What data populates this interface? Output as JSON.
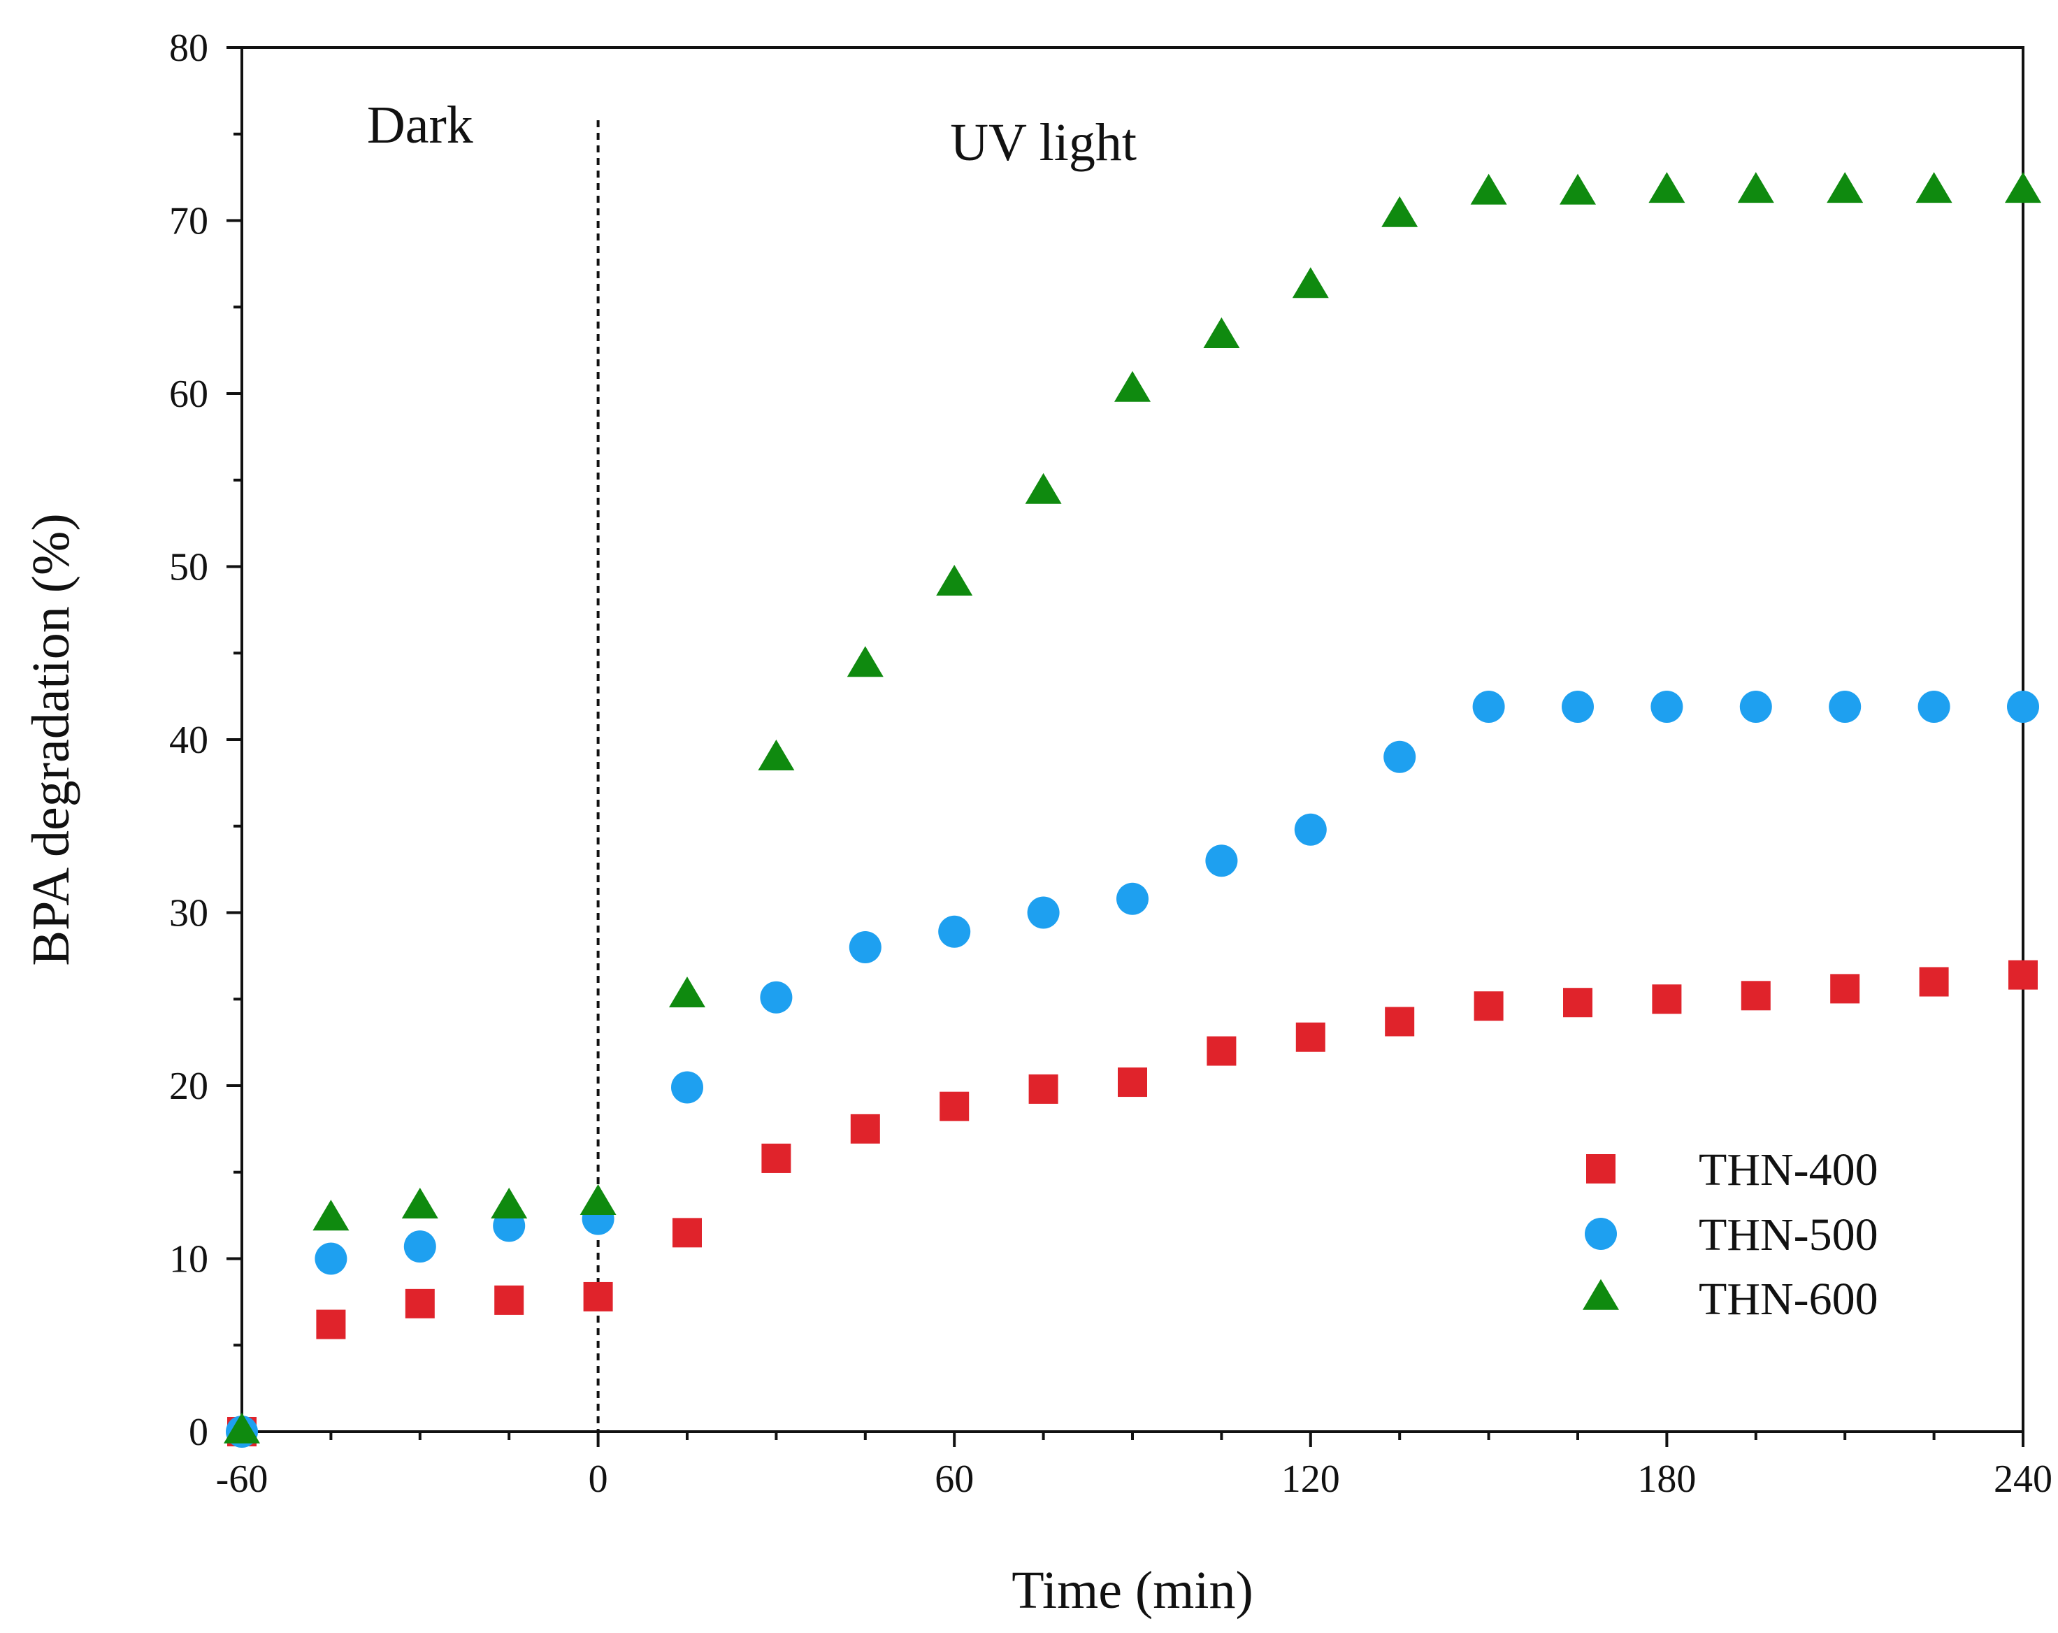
{
  "chart_data": {
    "type": "scatter",
    "xlabel": "Time (min)",
    "ylabel": "BPA degradation (%)",
    "xlim": [
      -60,
      240
    ],
    "ylim": [
      0,
      80
    ],
    "xticks": [
      -60,
      0,
      60,
      120,
      180,
      240
    ],
    "yticks": [
      0,
      10,
      20,
      30,
      40,
      50,
      60,
      70,
      80
    ],
    "x_minor_step": 15,
    "y_minor_step": 5,
    "divider_x": 0,
    "annotations": [
      {
        "text": "Dark",
        "x": -30,
        "y": 74.5
      },
      {
        "text": "UV light",
        "x": 75,
        "y": 73.5
      }
    ],
    "legend_position": "bottom-right",
    "x": [
      -60,
      -45,
      -30,
      -15,
      0,
      15,
      30,
      45,
      60,
      75,
      90,
      105,
      120,
      135,
      150,
      165,
      180,
      195,
      210,
      225,
      240
    ],
    "series": [
      {
        "name": "THN-400",
        "marker": "square",
        "color": "#e0232b",
        "values": [
          0,
          6.2,
          7.4,
          7.6,
          7.8,
          11.5,
          15.8,
          17.5,
          18.8,
          19.8,
          20.2,
          22.0,
          22.8,
          23.7,
          24.6,
          24.8,
          25.0,
          25.2,
          25.6,
          26.0,
          26.4
        ]
      },
      {
        "name": "THN-500",
        "marker": "circle",
        "color": "#1ea0f0",
        "values": [
          0,
          10.0,
          10.7,
          11.9,
          12.3,
          19.9,
          25.1,
          28.0,
          28.9,
          30.0,
          30.8,
          33.0,
          34.8,
          39.0,
          41.9,
          41.9,
          41.9,
          41.9,
          41.9,
          41.9,
          41.9
        ]
      },
      {
        "name": "THN-600",
        "marker": "triangle",
        "color": "#0f8a0f",
        "values": [
          0,
          12.3,
          13.0,
          13.0,
          13.2,
          25.2,
          38.9,
          44.3,
          49.0,
          54.3,
          60.2,
          63.3,
          66.2,
          70.3,
          71.6,
          71.6,
          71.7,
          71.7,
          71.7,
          71.7,
          71.7
        ]
      }
    ]
  }
}
